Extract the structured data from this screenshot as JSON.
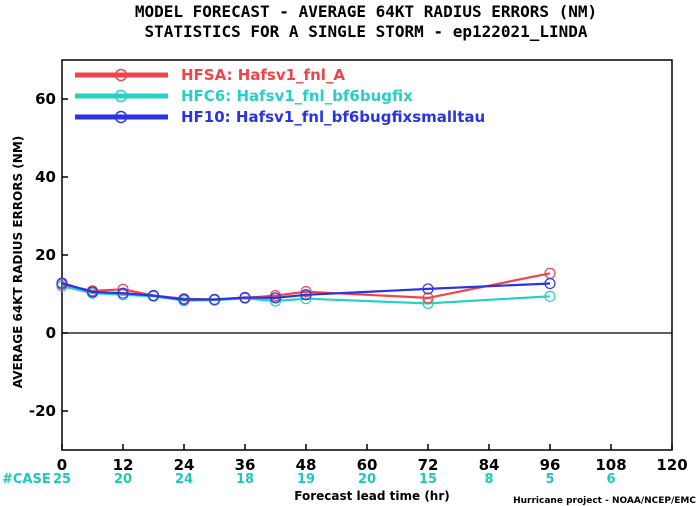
{
  "chart_data": {
    "type": "line",
    "title_line1": "MODEL FORECAST - AVERAGE 64KT RADIUS ERRORS (NM)",
    "title_line2": "STATISTICS FOR A SINGLE STORM - ep122021_LINDA",
    "xlabel": "Forecast lead time (hr)",
    "ylabel": "AVERAGE 64KT RADIUS ERRORS (NM)",
    "xlim": [
      0,
      120
    ],
    "ylim": [
      -30,
      70
    ],
    "x_ticks": [
      0,
      12,
      24,
      36,
      48,
      60,
      72,
      84,
      96,
      108,
      120
    ],
    "y_ticks": [
      -20,
      0,
      20,
      40,
      60
    ],
    "series": [
      {
        "name": "HFSA: Hafsv1_fnl_A",
        "color": "#f0444a",
        "points": [
          [
            0,
            12.5
          ],
          [
            6,
            10.8
          ],
          [
            12,
            11.2
          ],
          [
            18,
            9.6
          ],
          [
            24,
            8.8
          ],
          [
            30,
            8.6
          ],
          [
            36,
            9.0
          ],
          [
            42,
            9.6
          ],
          [
            48,
            10.6
          ],
          [
            72,
            9.0
          ],
          [
            96,
            15.3
          ]
        ]
      },
      {
        "name": "HFC6: Hafsv1_fnl_bf6bugfix",
        "color": "#27d0c4",
        "points": [
          [
            0,
            12.0
          ],
          [
            6,
            10.2
          ],
          [
            12,
            9.8
          ],
          [
            18,
            9.4
          ],
          [
            24,
            8.3
          ],
          [
            30,
            8.4
          ],
          [
            36,
            8.9
          ],
          [
            42,
            8.2
          ],
          [
            48,
            8.8
          ],
          [
            72,
            7.6
          ],
          [
            96,
            9.4
          ]
        ]
      },
      {
        "name": "HF10: Hafsv1_fnl_bf6bugfixsmalltau",
        "color": "#2a34e6",
        "points": [
          [
            0,
            12.8
          ],
          [
            6,
            10.5
          ],
          [
            12,
            10.2
          ],
          [
            18,
            9.6
          ],
          [
            24,
            8.6
          ],
          [
            30,
            8.6
          ],
          [
            36,
            9.1
          ],
          [
            42,
            9.0
          ],
          [
            48,
            9.8
          ],
          [
            72,
            11.3
          ],
          [
            96,
            12.7
          ]
        ]
      }
    ],
    "legend_position": "top-left",
    "zero_line": true,
    "grid": false,
    "case_label": "#CASE",
    "cases": [
      {
        "x": 0,
        "n": "25"
      },
      {
        "x": 12,
        "n": "20"
      },
      {
        "x": 24,
        "n": "24"
      },
      {
        "x": 36,
        "n": "18"
      },
      {
        "x": 48,
        "n": "19"
      },
      {
        "x": 60,
        "n": "20"
      },
      {
        "x": 72,
        "n": "15"
      },
      {
        "x": 84,
        "n": "8"
      },
      {
        "x": 96,
        "n": "5"
      },
      {
        "x": 108,
        "n": "6"
      }
    ],
    "case_color": "#1ec8bc",
    "credit": "Hurricane project - NOAA/NCEP/EMC"
  }
}
